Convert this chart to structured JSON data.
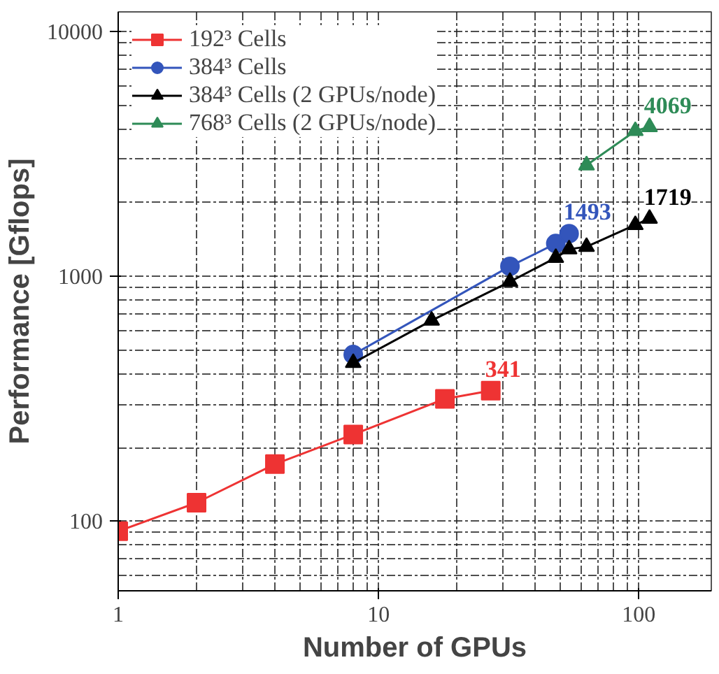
{
  "chart_data": {
    "type": "line",
    "xlabel": "Number of GPUs",
    "ylabel": "Performance [Gflops]",
    "log": "xy",
    "grid": true,
    "legend": "top left",
    "xlim": [
      1,
      190
    ],
    "ylim": [
      52,
      12000
    ],
    "xticks": [
      1,
      10,
      100
    ],
    "yticks": [
      100,
      1000,
      10000
    ],
    "series": [
      {
        "name": "192³ Cells",
        "color": "#ee3333",
        "marker": "square",
        "x": [
          1,
          2,
          4,
          8,
          18,
          27
        ],
        "values": [
          91,
          119,
          171,
          226,
          316,
          341
        ]
      },
      {
        "name": "384³ Cells",
        "color": "#3355bb",
        "marker": "circle",
        "x": [
          8,
          32,
          48,
          54
        ],
        "values": [
          479,
          1098,
          1360,
          1493
        ]
      },
      {
        "name": "384³ Cells (2 GPUs/node)",
        "color": "#000000",
        "marker": "triangle",
        "x": [
          8,
          16,
          32,
          48,
          54,
          63,
          97,
          110
        ],
        "values": [
          443,
          660,
          950,
          1190,
          1290,
          1320,
          1620,
          1719
        ]
      },
      {
        "name": "768³ Cells (2 GPUs/node)",
        "color": "#2e8b57",
        "marker": "triangle",
        "x": [
          63,
          97,
          110
        ],
        "values": [
          2840,
          3920,
          4069
        ]
      }
    ],
    "annotations": [
      {
        "text": "341",
        "x": 27,
        "y": 341
      },
      {
        "text": "1493",
        "x": 54,
        "y": 1493
      },
      {
        "text": "1719",
        "x": 110,
        "y": 1719
      },
      {
        "text": "4069",
        "x": 110,
        "y": 4069
      }
    ]
  }
}
